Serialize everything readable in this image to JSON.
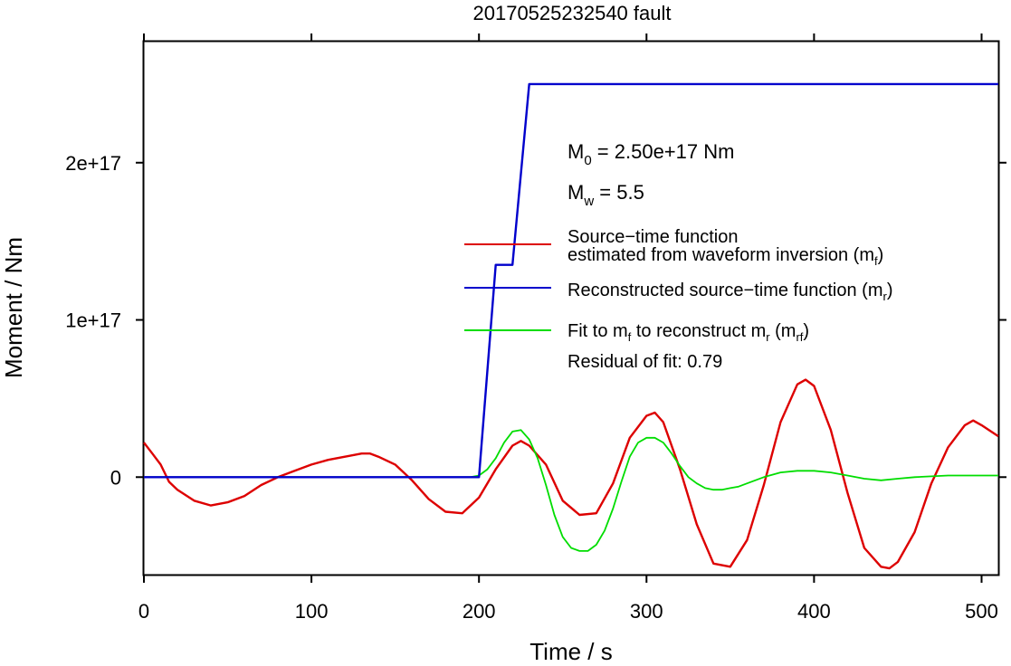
{
  "chart_data": {
    "type": "line",
    "title": "20170525232540 fault",
    "xlabel": "Time / s",
    "ylabel": "Moment / Nm",
    "xlim": [
      0,
      510
    ],
    "ylim": [
      -6.2e+16,
      2.77e+17
    ],
    "xticks": [
      0,
      100,
      200,
      300,
      400,
      500
    ],
    "xtick_labels": [
      "0",
      "100",
      "200",
      "300",
      "400",
      "500"
    ],
    "yticks": [
      0,
      1e+17,
      2e+17
    ],
    "ytick_labels": [
      "0",
      "1e+17",
      "2e+17"
    ],
    "grid": false,
    "legend_position": "center-right",
    "annotations": {
      "m0": {
        "pre": "M",
        "sub": "0",
        "post": " = 2.50e+17 Nm"
      },
      "mw": {
        "pre": "M",
        "sub": "w",
        "post": " = 5.5"
      },
      "residual": "Residual of fit: 0.79"
    },
    "series": [
      {
        "name": "Source−time function estimated from waveform inversion (m_f)",
        "legend": {
          "line1": "Source−time function",
          "line2_pre": "estimated from waveform inversion (m",
          "line2_sub": "f",
          "line2_post": ")"
        },
        "color": "#dd0000",
        "x": [
          0,
          5,
          10,
          15,
          20,
          30,
          40,
          50,
          60,
          70,
          80,
          90,
          100,
          110,
          120,
          130,
          135,
          140,
          150,
          160,
          170,
          180,
          190,
          200,
          210,
          220,
          225,
          230,
          240,
          250,
          260,
          270,
          280,
          290,
          300,
          305,
          310,
          320,
          330,
          340,
          350,
          360,
          370,
          380,
          390,
          395,
          400,
          410,
          420,
          430,
          440,
          445,
          450,
          460,
          470,
          480,
          490,
          495,
          500,
          510
        ],
        "y": [
          2.2e+16,
          1.5e+16,
          8000000000000000.0,
          -3000000000000000.0,
          -8000000000000000.0,
          -1.5e+16,
          -1.8e+16,
          -1.6e+16,
          -1.2e+16,
          -5000000000000000.0,
          0,
          4000000000000000.0,
          8000000000000000.0,
          1.1e+16,
          1.3e+16,
          1.5e+16,
          1.5e+16,
          1.3e+16,
          8000000000000000.0,
          -2000000000000000.0,
          -1.4e+16,
          -2.2e+16,
          -2.3e+16,
          -1.3e+16,
          5000000000000000.0,
          2e+16,
          2.3e+16,
          2e+16,
          8000000000000000.0,
          -1.5e+16,
          -2.4e+16,
          -2.3e+16,
          -4000000000000000.0,
          2.5e+16,
          3.9e+16,
          4.1e+16,
          3.5e+16,
          5000000000000000.0,
          -3e+16,
          -5.5e+16,
          -5.7e+16,
          -4e+16,
          -5000000000000000.0,
          3.5e+16,
          5.9e+16,
          6.2e+16,
          5.8e+16,
          3e+16,
          -1e+16,
          -4.5e+16,
          -5.7e+16,
          -5.8e+16,
          -5.4e+16,
          -3.5e+16,
          -4000000000000000.0,
          1.9e+16,
          3.3e+16,
          3.6e+16,
          3.3e+16,
          2.6e+16
        ]
      },
      {
        "name": "Reconstructed source−time function (m_r)",
        "legend": {
          "pre": "Reconstructed source−time function (m",
          "sub": "r",
          "post": ")"
        },
        "color": "#0000cc",
        "x": [
          0,
          200,
          210,
          220,
          230,
          510
        ],
        "y": [
          0,
          0,
          1.35e+17,
          1.35e+17,
          2.5e+17,
          2.5e+17
        ]
      },
      {
        "name": "Fit to m_f to reconstruct m_r (m_rf)",
        "legend": {
          "pre1": "Fit to m",
          "sub1": "f",
          "mid": " to reconstruct m",
          "sub2": "r",
          "mid2": " (m",
          "sub3": "rf",
          "post": ")"
        },
        "color": "#00dd00",
        "x": [
          0,
          195,
          200,
          205,
          210,
          215,
          220,
          225,
          230,
          235,
          240,
          245,
          250,
          255,
          260,
          265,
          270,
          275,
          280,
          285,
          290,
          295,
          300,
          305,
          310,
          315,
          320,
          325,
          330,
          335,
          340,
          345,
          350,
          355,
          360,
          370,
          380,
          390,
          400,
          410,
          420,
          430,
          440,
          450,
          460,
          470,
          480,
          490,
          500,
          510
        ],
        "y": [
          0,
          0,
          1000000000000000.0,
          5000000000000000.0,
          1.2e+16,
          2.2e+16,
          2.9e+16,
          3e+16,
          2.4e+16,
          1.2e+16,
          -5000000000000000.0,
          -2.4e+16,
          -3.8e+16,
          -4.5e+16,
          -4.7e+16,
          -4.7e+16,
          -4.3e+16,
          -3.4e+16,
          -2e+16,
          -3000000000000000.0,
          1.3e+16,
          2.2e+16,
          2.5e+16,
          2.5e+16,
          2.2e+16,
          1.5e+16,
          7000000000000000.0,
          0,
          -4000000000000000.0,
          -7000000000000000.0,
          -8000000000000000.0,
          -8000000000000000.0,
          -7000000000000000.0,
          -6000000000000000.0,
          -4000000000000000.0,
          0,
          3000000000000000.0,
          4000000000000000.0,
          4000000000000000.0,
          3000000000000000.0,
          1000000000000000.0,
          -1000000000000000.0,
          -2000000000000000.0,
          -1000000000000000.0,
          0,
          500000000000000.0,
          1000000000000000.0,
          1000000000000000.0,
          1000000000000000.0,
          1000000000000000.0
        ]
      }
    ]
  }
}
